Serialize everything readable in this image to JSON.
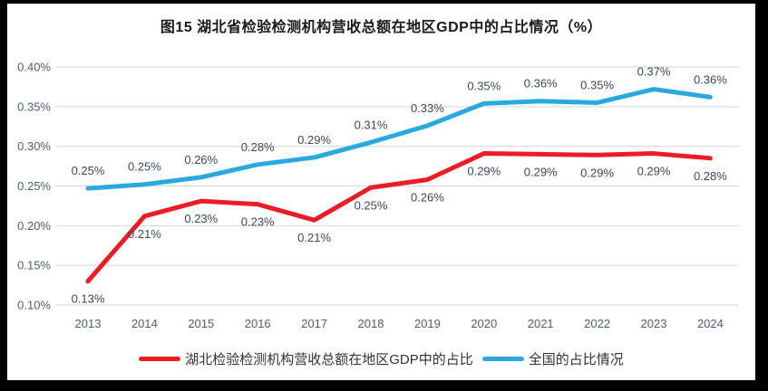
{
  "chart_data": {
    "type": "line",
    "title": "图15  湖北省检验检测机构营收总额在地区GDP中的占比情况（%）",
    "categories": [
      "2013",
      "2014",
      "2015",
      "2016",
      "2017",
      "2018",
      "2019",
      "2020",
      "2021",
      "2022",
      "2023",
      "2024"
    ],
    "series": [
      {
        "name": "湖北检验检测机构营收总额在地区GDP中的占比",
        "color": "#ec1c24",
        "labels": [
          "0.13%",
          "0.21%",
          "0.23%",
          "0.23%",
          "0.21%",
          "0.25%",
          "0.26%",
          "0.29%",
          "0.29%",
          "0.29%",
          "0.29%",
          "0.28%"
        ],
        "values": [
          0.13,
          0.212,
          0.231,
          0.227,
          0.207,
          0.248,
          0.258,
          0.291,
          0.29,
          0.289,
          0.291,
          0.285
        ],
        "label_position": "below"
      },
      {
        "name": "全国的占比情况",
        "color": "#29a9e0",
        "labels": [
          "0.25%",
          "0.25%",
          "0.26%",
          "0.28%",
          "0.29%",
          "0.31%",
          "0.33%",
          "0.35%",
          "0.36%",
          "0.35%",
          "0.37%",
          "0.36%"
        ],
        "values": [
          0.247,
          0.252,
          0.261,
          0.277,
          0.286,
          0.305,
          0.326,
          0.354,
          0.357,
          0.355,
          0.372,
          0.362
        ],
        "label_position": "above"
      }
    ],
    "y_axis": {
      "min": 0.1,
      "max": 0.4,
      "step": 0.05,
      "ticks": [
        "0.40%",
        "0.35%",
        "0.30%",
        "0.25%",
        "0.20%",
        "0.15%",
        "0.10%"
      ]
    },
    "grid": true,
    "legend_position": "bottom",
    "colors": {
      "gridline": "#d6d6d6",
      "axis_label": "#515e6e",
      "data_label": "#3f4856",
      "title": "#1a1a1a",
      "frame_border": "#000000",
      "background": "#ffffff"
    }
  }
}
